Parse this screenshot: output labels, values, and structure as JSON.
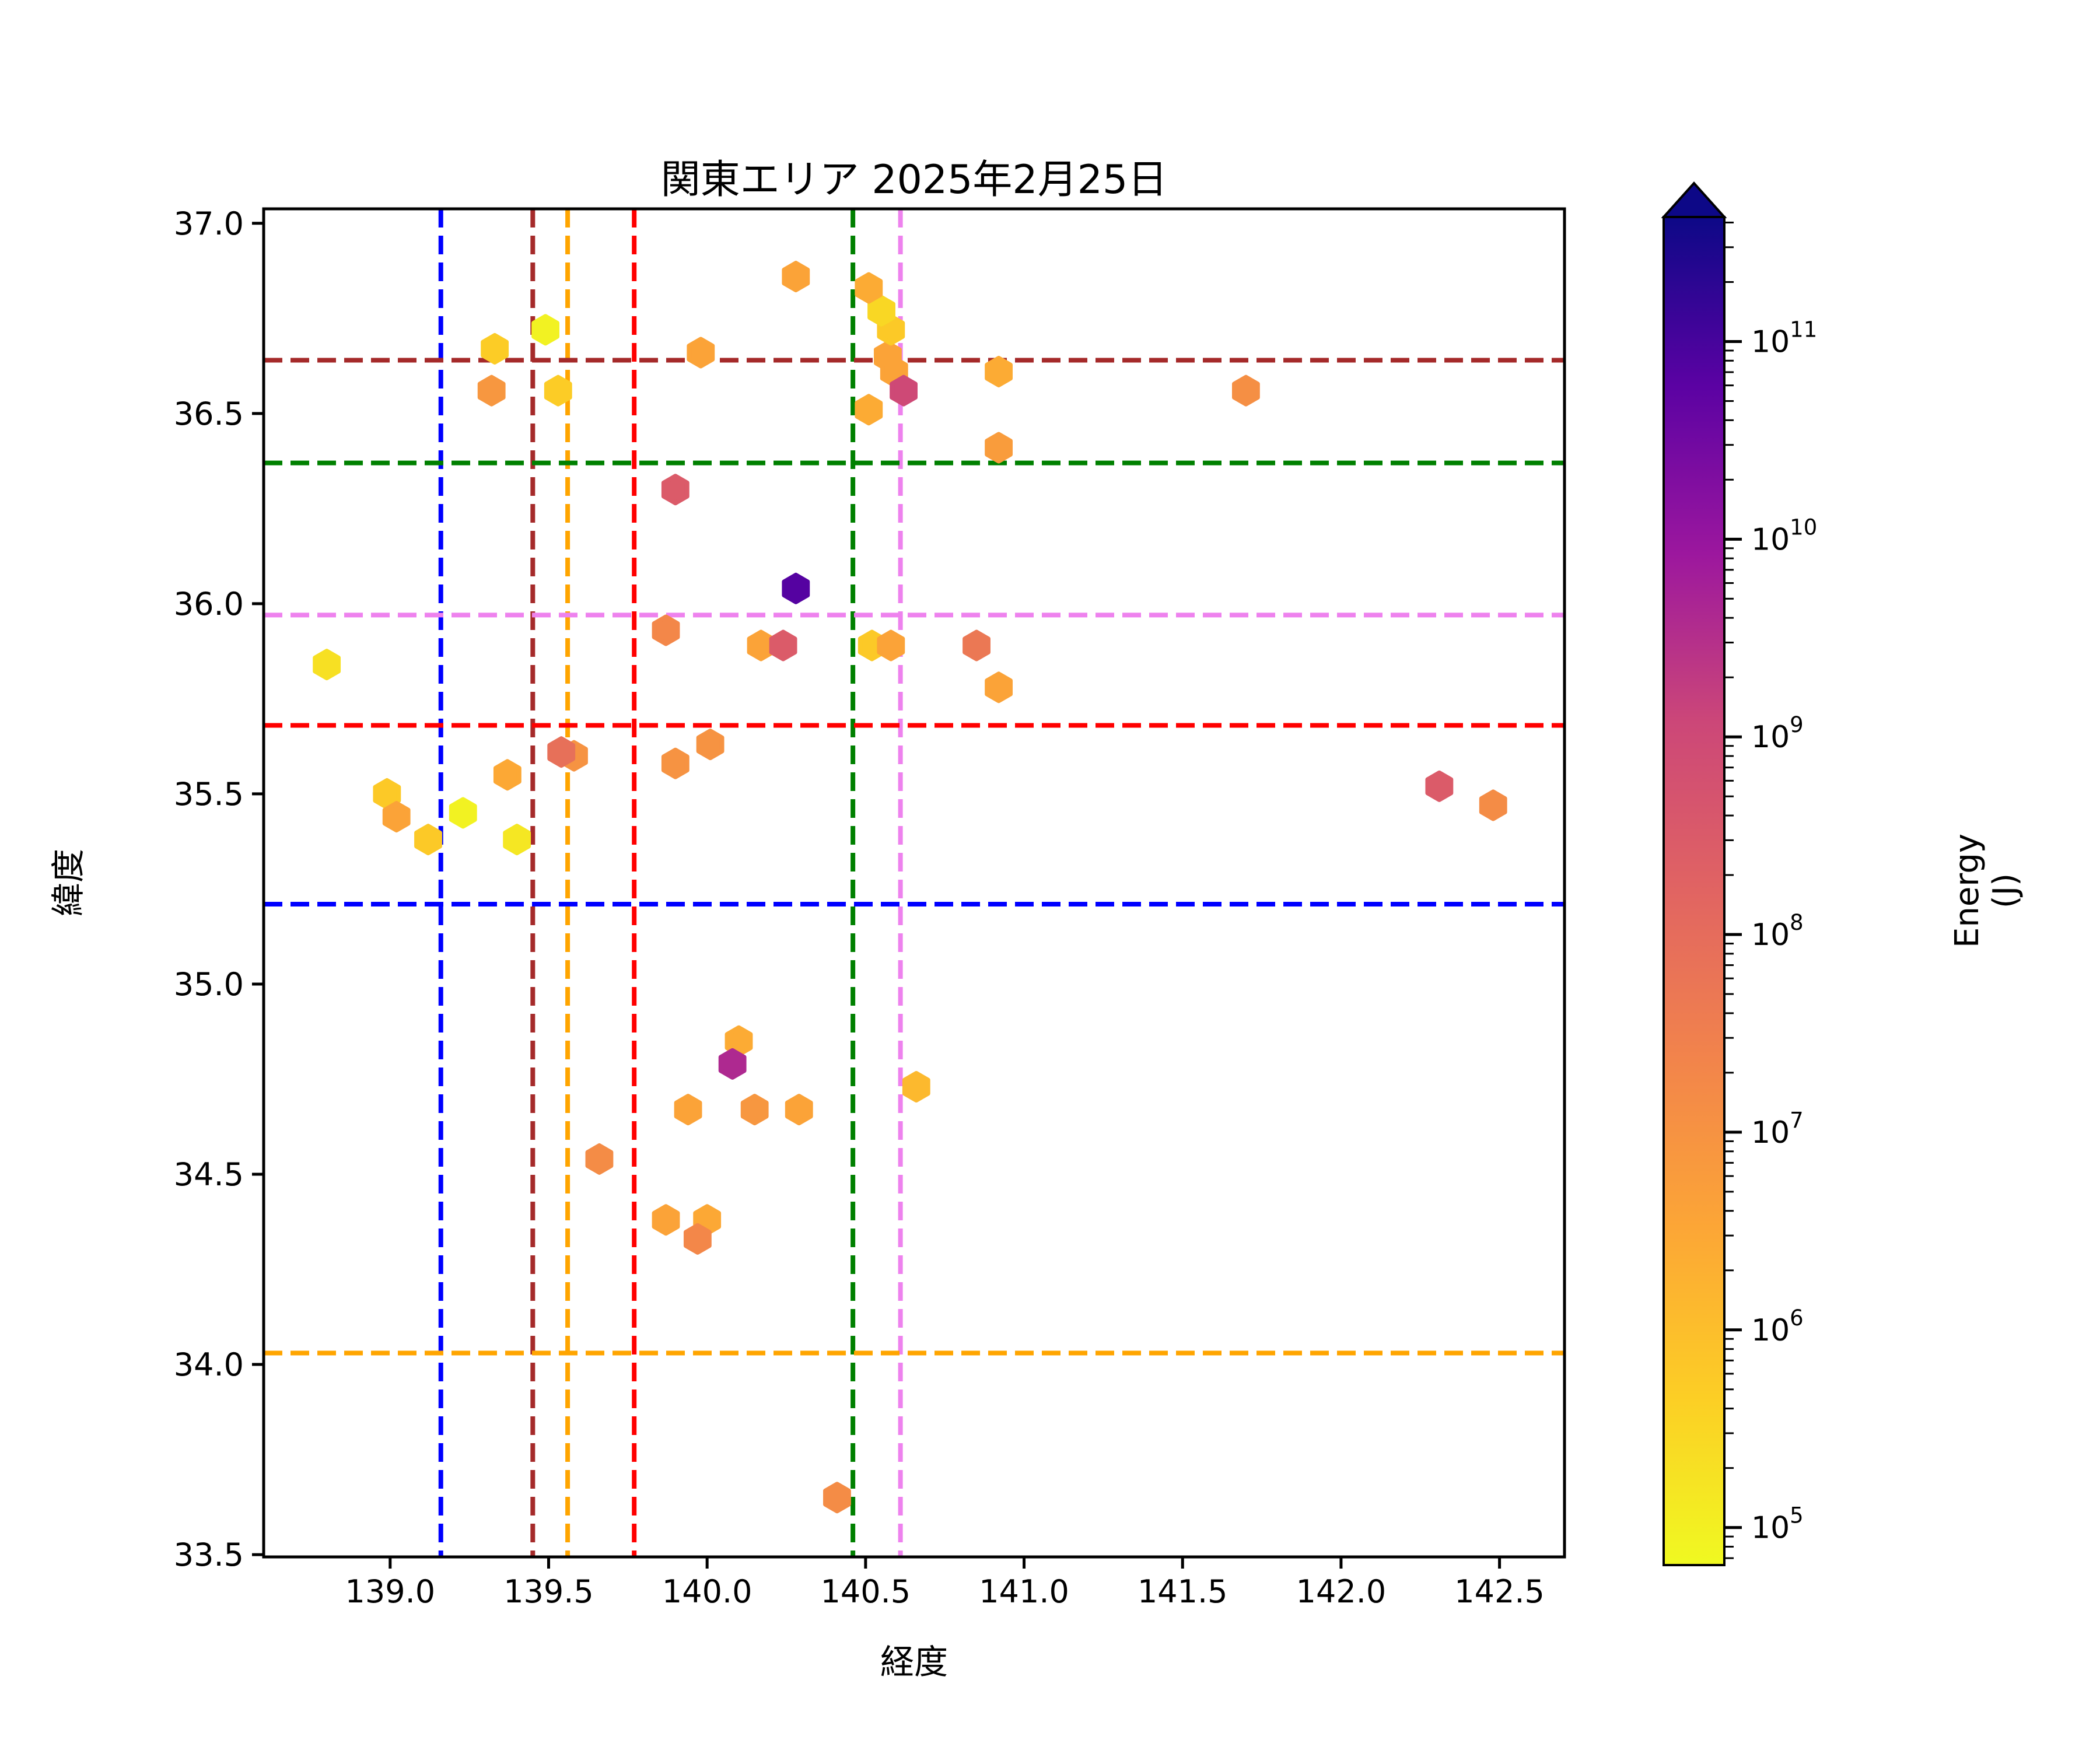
{
  "figure": {
    "background": "#ffffff"
  },
  "chart_data": {
    "type": "scatter",
    "title": "関東エリア 2025年2月25日",
    "xlabel": "経度",
    "ylabel": "緯度",
    "xlim": [
      138.601,
      142.705
    ],
    "ylim": [
      33.494,
      37.038
    ],
    "grid": false,
    "marker": "hexagon",
    "x_ticks": [
      {
        "value": 139.0,
        "label": "139.0"
      },
      {
        "value": 139.5,
        "label": "139.5"
      },
      {
        "value": 140.0,
        "label": "140.0"
      },
      {
        "value": 140.5,
        "label": "140.5"
      },
      {
        "value": 141.0,
        "label": "141.0"
      },
      {
        "value": 141.5,
        "label": "141.5"
      },
      {
        "value": 142.0,
        "label": "142.0"
      },
      {
        "value": 142.5,
        "label": "142.5"
      }
    ],
    "y_ticks": [
      {
        "value": 37.0,
        "label": "37.0"
      },
      {
        "value": 36.5,
        "label": "36.5"
      },
      {
        "value": 36.0,
        "label": "36.0"
      },
      {
        "value": 35.5,
        "label": "35.5"
      },
      {
        "value": 35.0,
        "label": "35.0"
      },
      {
        "value": 34.5,
        "label": "34.5"
      },
      {
        "value": 34.0,
        "label": "34.0"
      },
      {
        "value": 33.5,
        "label": "33.5"
      }
    ],
    "points": [
      {
        "lon": 140.28,
        "lat": 36.86,
        "energy_j": 4000000.0
      },
      {
        "lon": 140.57,
        "lat": 36.65,
        "energy_j": 4000000.0
      },
      {
        "lon": 140.59,
        "lat": 36.61,
        "energy_j": 4000000.0
      },
      {
        "lon": 140.58,
        "lat": 36.72,
        "energy_j": 600000.0
      },
      {
        "lon": 140.55,
        "lat": 36.77,
        "energy_j": 300000.0
      },
      {
        "lon": 140.51,
        "lat": 36.83,
        "energy_j": 2500000.0
      },
      {
        "lon": 140.62,
        "lat": 36.56,
        "energy_j": 1000000000.0
      },
      {
        "lon": 140.51,
        "lat": 36.51,
        "energy_j": 2500000.0
      },
      {
        "lon": 140.92,
        "lat": 36.61,
        "energy_j": 2500000.0
      },
      {
        "lon": 140.92,
        "lat": 36.41,
        "energy_j": 6000000.0
      },
      {
        "lon": 141.7,
        "lat": 36.56,
        "energy_j": 12000000.0
      },
      {
        "lon": 139.98,
        "lat": 36.66,
        "energy_j": 4000000.0
      },
      {
        "lon": 139.33,
        "lat": 36.67,
        "energy_j": 500000.0
      },
      {
        "lon": 139.49,
        "lat": 36.72,
        "energy_j": 90000.0
      },
      {
        "lon": 139.32,
        "lat": 36.56,
        "energy_j": 8000000.0
      },
      {
        "lon": 139.53,
        "lat": 36.56,
        "energy_j": 500000.0
      },
      {
        "lon": 139.9,
        "lat": 36.3,
        "energy_j": 300000000.0
      },
      {
        "lon": 140.28,
        "lat": 36.04,
        "energy_j": 70000000000.0
      },
      {
        "lon": 139.87,
        "lat": 35.93,
        "energy_j": 20000000.0
      },
      {
        "lon": 140.17,
        "lat": 35.89,
        "energy_j": 4000000.0
      },
      {
        "lon": 140.24,
        "lat": 35.89,
        "energy_j": 300000000.0
      },
      {
        "lon": 140.52,
        "lat": 35.89,
        "energy_j": 600000.0
      },
      {
        "lon": 140.58,
        "lat": 35.89,
        "energy_j": 4000000.0
      },
      {
        "lon": 140.85,
        "lat": 35.89,
        "energy_j": 50000000.0
      },
      {
        "lon": 140.92,
        "lat": 35.78,
        "energy_j": 4000000.0
      },
      {
        "lon": 140.01,
        "lat": 35.63,
        "energy_j": 10000000.0
      },
      {
        "lon": 139.9,
        "lat": 35.58,
        "energy_j": 10000000.0
      },
      {
        "lon": 139.58,
        "lat": 35.6,
        "energy_j": 10000000.0
      },
      {
        "lon": 139.54,
        "lat": 35.61,
        "energy_j": 80000000.0
      },
      {
        "lon": 138.8,
        "lat": 35.84,
        "energy_j": 200000.0
      },
      {
        "lon": 139.37,
        "lat": 35.55,
        "energy_j": 3000000.0
      },
      {
        "lon": 138.99,
        "lat": 35.5,
        "energy_j": 600000.0
      },
      {
        "lon": 139.02,
        "lat": 35.44,
        "energy_j": 4000000.0
      },
      {
        "lon": 139.12,
        "lat": 35.38,
        "energy_j": 600000.0
      },
      {
        "lon": 139.23,
        "lat": 35.45,
        "energy_j": 90000.0
      },
      {
        "lon": 139.4,
        "lat": 35.38,
        "energy_j": 150000.0
      },
      {
        "lon": 142.31,
        "lat": 35.52,
        "energy_j": 300000000.0
      },
      {
        "lon": 142.48,
        "lat": 35.47,
        "energy_j": 15000000.0
      },
      {
        "lon": 140.1,
        "lat": 34.85,
        "energy_j": 2500000.0
      },
      {
        "lon": 140.08,
        "lat": 34.79,
        "energy_j": 4000000000.0
      },
      {
        "lon": 139.94,
        "lat": 34.67,
        "energy_j": 4000000.0
      },
      {
        "lon": 140.15,
        "lat": 34.67,
        "energy_j": 8000000.0
      },
      {
        "lon": 140.29,
        "lat": 34.67,
        "energy_j": 4000000.0
      },
      {
        "lon": 139.66,
        "lat": 34.54,
        "energy_j": 15000000.0
      },
      {
        "lon": 140.66,
        "lat": 34.73,
        "energy_j": 1300000.0
      },
      {
        "lon": 139.87,
        "lat": 34.38,
        "energy_j": 4000000.0
      },
      {
        "lon": 140.0,
        "lat": 34.38,
        "energy_j": 3000000.0
      },
      {
        "lon": 139.97,
        "lat": 34.33,
        "energy_j": 20000000.0
      },
      {
        "lon": 140.41,
        "lat": 33.65,
        "energy_j": 15000000.0
      }
    ],
    "reference_lines": {
      "vertical": [
        {
          "lon": 139.16,
          "color": "#0000ff",
          "name": "blue"
        },
        {
          "lon": 139.45,
          "color": "#a52a2a",
          "name": "darkred"
        },
        {
          "lon": 139.56,
          "color": "#ffa500",
          "name": "orange"
        },
        {
          "lon": 139.77,
          "color": "#ff0000",
          "name": "red"
        },
        {
          "lon": 140.46,
          "color": "#008000",
          "name": "green"
        },
        {
          "lon": 140.61,
          "color": "#ee82ee",
          "name": "violet"
        }
      ],
      "horizontal": [
        {
          "lat": 36.64,
          "color": "#a52a2a",
          "name": "darkred"
        },
        {
          "lat": 36.37,
          "color": "#008000",
          "name": "green"
        },
        {
          "lat": 35.97,
          "color": "#ee82ee",
          "name": "violet"
        },
        {
          "lat": 35.68,
          "color": "#ff0000",
          "name": "red"
        },
        {
          "lat": 35.21,
          "color": "#0000ff",
          "name": "blue"
        },
        {
          "lat": 34.03,
          "color": "#ffa500",
          "name": "orange"
        }
      ],
      "style": "dashed"
    },
    "colorbar": {
      "label": "Energy (J)",
      "scale": "log",
      "extend": "max",
      "colormap": "plasma_r",
      "log10_range": [
        4.81,
        11.63
      ],
      "tick_exponents": [
        5,
        6,
        7,
        8,
        9,
        10,
        11
      ],
      "tick_labels": [
        "10⁵",
        "10⁶",
        "10⁷",
        "10⁸",
        "10⁹",
        "10¹⁰",
        "10¹¹"
      ],
      "colormap_stops": [
        {
          "t": 0.0,
          "color": "#0d0887"
        },
        {
          "t": 0.125,
          "color": "#5b02a3"
        },
        {
          "t": 0.25,
          "color": "#9c179e"
        },
        {
          "t": 0.375,
          "color": "#cc4778"
        },
        {
          "t": 0.5,
          "color": "#e16462"
        },
        {
          "t": 0.625,
          "color": "#f2844b"
        },
        {
          "t": 0.75,
          "color": "#fca636"
        },
        {
          "t": 0.875,
          "color": "#fcce25"
        },
        {
          "t": 1.0,
          "color": "#f0f921"
        }
      ]
    }
  }
}
